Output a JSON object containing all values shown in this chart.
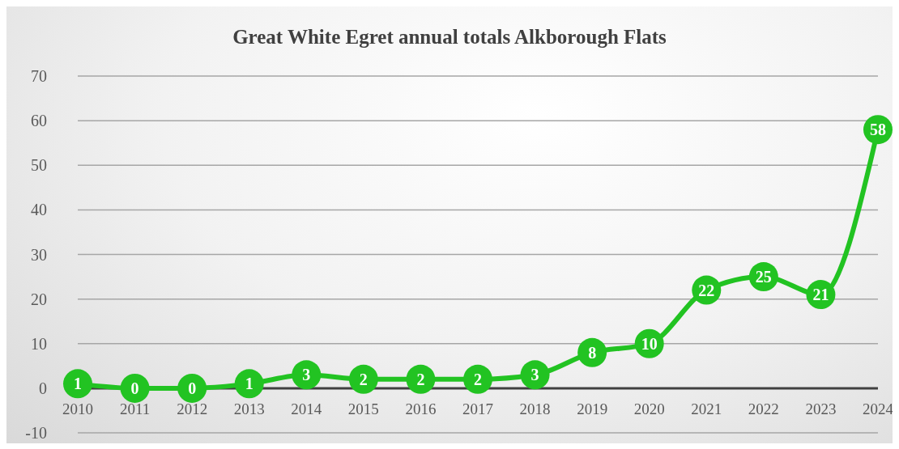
{
  "chart_data": {
    "type": "line",
    "title": "Great White Egret annual totals Alkborough Flats",
    "categories": [
      "2010",
      "2011",
      "2012",
      "2013",
      "2014",
      "2015",
      "2016",
      "2017",
      "2018",
      "2019",
      "2020",
      "2021",
      "2022",
      "2023",
      "2024"
    ],
    "series": [
      {
        "color": "#22c322",
        "values": [
          1,
          0,
          0,
          1,
          3,
          2,
          2,
          2,
          3,
          8,
          10,
          22,
          25,
          21,
          58
        ]
      }
    ],
    "ylim": [
      -10,
      70
    ],
    "yticks": [
      -10,
      0,
      10,
      20,
      30,
      40,
      50,
      60,
      70
    ],
    "grid": "y",
    "legend": false,
    "marker": "circle",
    "line_style": "solid",
    "data_labels": true
  }
}
